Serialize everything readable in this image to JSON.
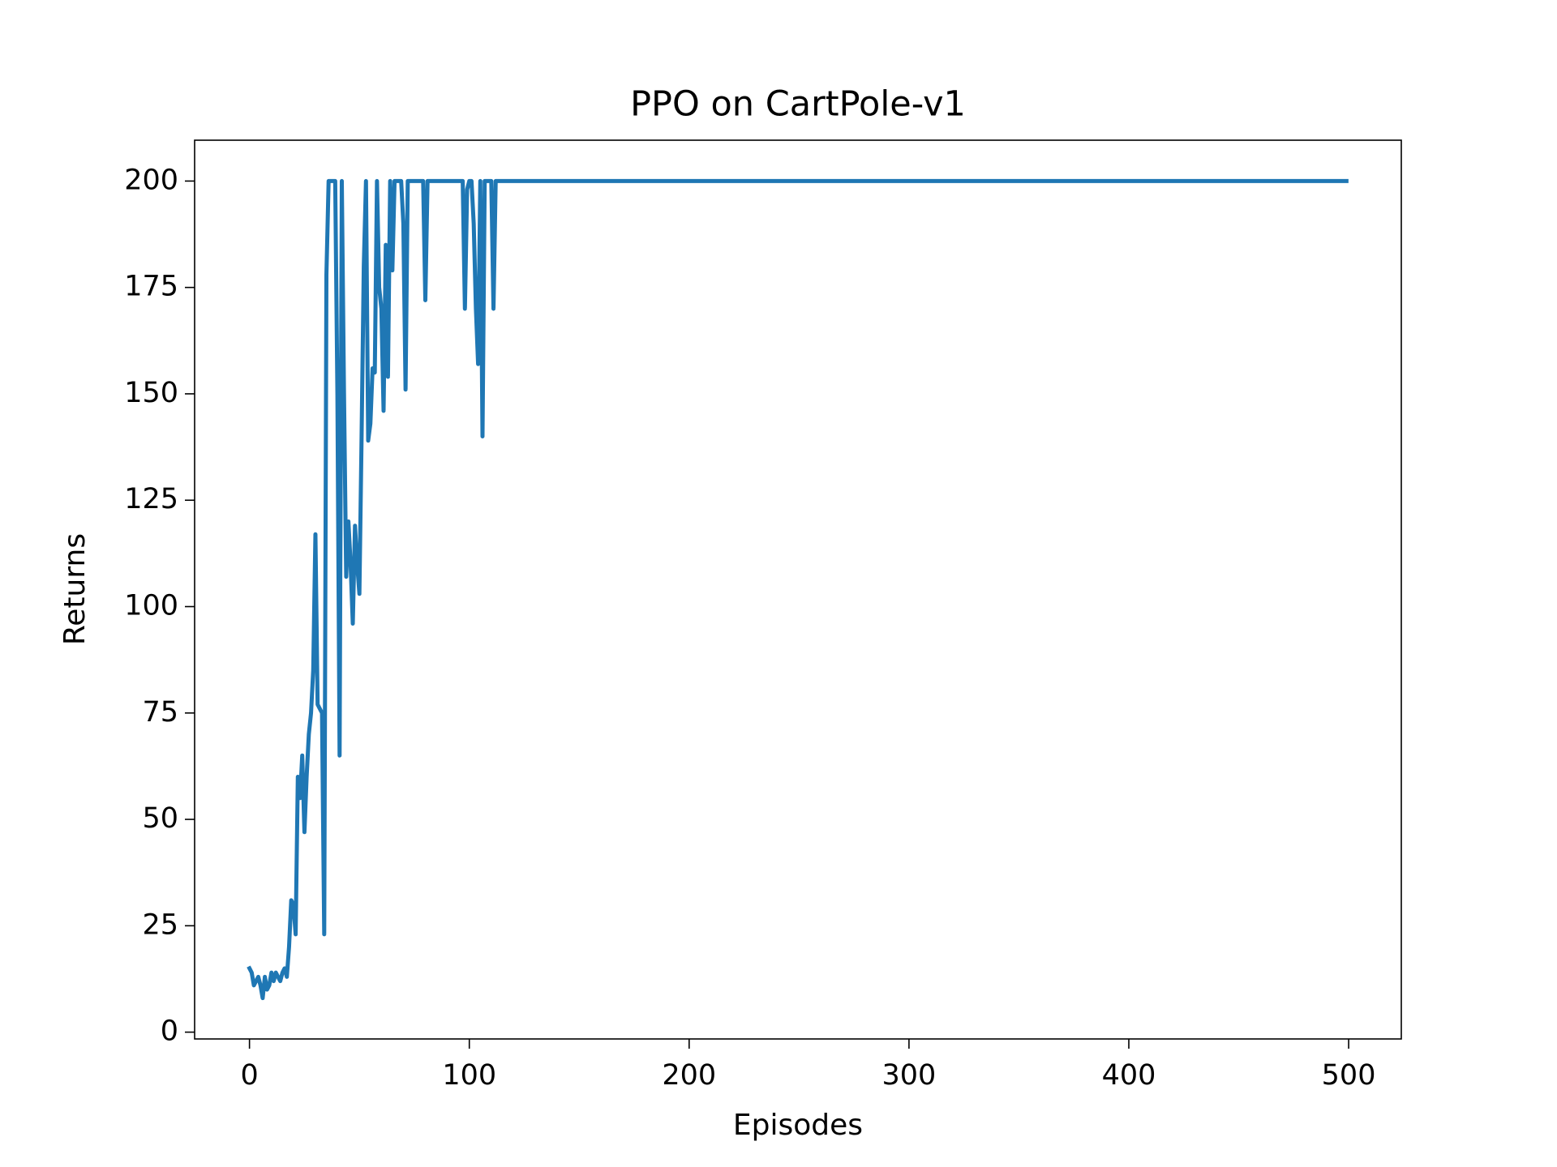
{
  "chart_data": {
    "type": "line",
    "title": "PPO on CartPole-v1",
    "x_label": "Episodes",
    "y_label": "Returns",
    "color": "#1f77b4",
    "xlim": [
      -24.95,
      523.95
    ],
    "xticks": [
      0,
      100,
      200,
      300,
      400,
      500
    ],
    "ylim": [
      -1.6,
      209.6
    ],
    "yticks": [
      0,
      25,
      50,
      75,
      100,
      125,
      150,
      175,
      200
    ],
    "x": [
      0,
      1,
      2,
      3,
      4,
      5,
      6,
      7,
      8,
      9,
      10,
      11,
      12,
      13,
      14,
      15,
      16,
      17,
      18,
      19,
      20,
      21,
      22,
      23,
      24,
      25,
      26,
      27,
      28,
      29,
      30,
      31,
      32,
      33,
      34,
      35,
      36,
      37,
      38,
      39,
      40,
      41,
      42,
      43,
      44,
      45,
      46,
      47,
      48,
      49,
      50,
      51,
      52,
      53,
      54,
      55,
      56,
      57,
      58,
      59,
      60,
      61,
      62,
      63,
      64,
      65,
      66,
      67,
      68,
      69,
      70,
      71,
      72,
      73,
      74,
      75,
      76,
      77,
      78,
      79,
      80,
      81,
      82,
      83,
      84,
      85,
      86,
      87,
      88,
      89,
      90,
      91,
      92,
      93,
      94,
      95,
      96,
      97,
      98,
      99,
      100,
      101,
      102,
      103,
      104,
      105,
      106,
      107,
      108,
      109,
      110,
      111,
      112,
      113,
      114,
      115,
      116,
      117,
      118,
      119,
      120,
      121,
      122,
      123,
      124,
      125,
      126,
      127,
      128,
      129,
      130,
      131,
      132,
      133,
      134,
      135,
      136,
      137,
      138,
      139,
      140,
      141,
      142,
      143,
      144,
      145,
      146,
      147,
      148,
      149,
      150,
      151,
      152,
      153,
      154,
      155,
      156,
      157,
      158,
      159,
      160,
      161,
      162,
      163,
      164,
      165,
      166,
      167,
      168,
      169,
      170,
      171,
      172,
      173,
      174,
      175,
      176,
      177,
      178,
      179,
      180,
      181,
      182,
      183,
      184,
      185,
      186,
      187,
      188,
      189,
      190,
      191,
      192,
      193,
      194,
      195,
      196,
      197,
      198,
      199,
      200,
      201,
      202,
      203,
      204,
      205,
      206,
      207,
      208,
      209,
      210,
      211,
      212,
      213,
      214,
      215,
      216,
      217,
      218,
      219,
      220,
      221,
      222,
      223,
      224,
      225,
      226,
      227,
      228,
      229,
      230,
      231,
      232,
      233,
      234,
      235,
      236,
      237,
      238,
      239,
      240,
      241,
      242,
      243,
      244,
      245,
      246,
      247,
      248,
      249,
      250,
      251,
      252,
      253,
      254,
      255,
      256,
      257,
      258,
      259,
      260,
      261,
      262,
      263,
      264,
      265,
      266,
      267,
      268,
      269,
      270,
      271,
      272,
      273,
      274,
      275,
      276,
      277,
      278,
      279,
      280,
      281,
      282,
      283,
      284,
      285,
      286,
      287,
      288,
      289,
      290,
      291,
      292,
      293,
      294,
      295,
      296,
      297,
      298,
      299,
      300,
      301,
      302,
      303,
      304,
      305,
      306,
      307,
      308,
      309,
      310,
      311,
      312,
      313,
      314,
      315,
      316,
      317,
      318,
      319,
      320,
      321,
      322,
      323,
      324,
      325,
      326,
      327,
      328,
      329,
      330,
      331,
      332,
      333,
      334,
      335,
      336,
      337,
      338,
      339,
      340,
      341,
      342,
      343,
      344,
      345,
      346,
      347,
      348,
      349,
      350,
      351,
      352,
      353,
      354,
      355,
      356,
      357,
      358,
      359,
      360,
      361,
      362,
      363,
      364,
      365,
      366,
      367,
      368,
      369,
      370,
      371,
      372,
      373,
      374,
      375,
      376,
      377,
      378,
      379,
      380,
      381,
      382,
      383,
      384,
      385,
      386,
      387,
      388,
      389,
      390,
      391,
      392,
      393,
      394,
      395,
      396,
      397,
      398,
      399,
      400,
      401,
      402,
      403,
      404,
      405,
      406,
      407,
      408,
      409,
      410,
      411,
      412,
      413,
      414,
      415,
      416,
      417,
      418,
      419,
      420,
      421,
      422,
      423,
      424,
      425,
      426,
      427,
      428,
      429,
      430,
      431,
      432,
      433,
      434,
      435,
      436,
      437,
      438,
      439,
      440,
      441,
      442,
      443,
      444,
      445,
      446,
      447,
      448,
      449,
      450,
      451,
      452,
      453,
      454,
      455,
      456,
      457,
      458,
      459,
      460,
      461,
      462,
      463,
      464,
      465,
      466,
      467,
      468,
      469,
      470,
      471,
      472,
      473,
      474,
      475,
      476,
      477,
      478,
      479,
      480,
      481,
      482,
      483,
      484,
      485,
      486,
      487,
      488,
      489,
      490,
      491,
      492,
      493,
      494,
      495,
      496,
      497,
      498,
      499
    ],
    "values": [
      15,
      14,
      11,
      12,
      13,
      11,
      8,
      13,
      10,
      11,
      14,
      12,
      14,
      13,
      12,
      14,
      15,
      13,
      20,
      31,
      30,
      23,
      60,
      55,
      65,
      47,
      60,
      70,
      75,
      85,
      117,
      77,
      76,
      75,
      23,
      178,
      200,
      200,
      200,
      200,
      150,
      65,
      200,
      150,
      107,
      120,
      110,
      96,
      119,
      110,
      103,
      140,
      180,
      200,
      139,
      143,
      156,
      155,
      200,
      175,
      170,
      146,
      185,
      154,
      200,
      179,
      200,
      200,
      200,
      200,
      190,
      151,
      200,
      200,
      200,
      200,
      200,
      200,
      200,
      200,
      172,
      200,
      200,
      200,
      200,
      200,
      200,
      200,
      200,
      200,
      200,
      200,
      200,
      200,
      200,
      200,
      200,
      200,
      170,
      198,
      200,
      200,
      190,
      170,
      157,
      200,
      140,
      200,
      200,
      200,
      200,
      170,
      200,
      200,
      200,
      200,
      200,
      200,
      200,
      200,
      200,
      200,
      200,
      200,
      200,
      200,
      200,
      200,
      200,
      200,
      200,
      200,
      200,
      200,
      200,
      200,
      200,
      200,
      200,
      200,
      200,
      200,
      200,
      200,
      200,
      200,
      200,
      200,
      200,
      200,
      200,
      200,
      200,
      200,
      200,
      200,
      200,
      200,
      200,
      200,
      200,
      200,
      200,
      200,
      200,
      200,
      200,
      200,
      200,
      200,
      200,
      200,
      200,
      200,
      200,
      200,
      200,
      200,
      200,
      200,
      200,
      200,
      200,
      200,
      200,
      200,
      200,
      200,
      200,
      200,
      200,
      200,
      200,
      200,
      200,
      200,
      200,
      200,
      200,
      200,
      200,
      200,
      200,
      200,
      200,
      200,
      200,
      200,
      200,
      200,
      200,
      200,
      200,
      200,
      200,
      200,
      200,
      200,
      200,
      200,
      200,
      200,
      200,
      200,
      200,
      200,
      200,
      200,
      200,
      200,
      200,
      200,
      200,
      200,
      200,
      200,
      200,
      200,
      200,
      200,
      200,
      200,
      200,
      200,
      200,
      200,
      200,
      200,
      200,
      200,
      200,
      200,
      200,
      200,
      200,
      200,
      200,
      200,
      200,
      200,
      200,
      200,
      200,
      200,
      200,
      200,
      200,
      200,
      200,
      200,
      200,
      200,
      200,
      200,
      200,
      200,
      200,
      200,
      200,
      200,
      200,
      200,
      200,
      200,
      200,
      200,
      200,
      200,
      200,
      200,
      200,
      200,
      200,
      200,
      200,
      200,
      200,
      200,
      200,
      200,
      200,
      200,
      200,
      200,
      200,
      200,
      200,
      200,
      200,
      200,
      200,
      200,
      200,
      200,
      200,
      200,
      200,
      200,
      200,
      200,
      200,
      200,
      200,
      200,
      200,
      200,
      200,
      200,
      200,
      200,
      200,
      200,
      200,
      200,
      200,
      200,
      200,
      200,
      200,
      200,
      200,
      200,
      200,
      200,
      200,
      200,
      200,
      200,
      200,
      200,
      200,
      200,
      200,
      200,
      200,
      200,
      200,
      200,
      200,
      200,
      200,
      200,
      200,
      200,
      200,
      200,
      200,
      200,
      200,
      200,
      200,
      200,
      200,
      200,
      200,
      200,
      200,
      200,
      200,
      200,
      200,
      200,
      200,
      200,
      200,
      200,
      200,
      200,
      200,
      200,
      200,
      200,
      200,
      200,
      200,
      200,
      200,
      200,
      200,
      200,
      200,
      200,
      200,
      200,
      200,
      200,
      200,
      200,
      200,
      200,
      200,
      200,
      200,
      200,
      200,
      200,
      200,
      200,
      200,
      200,
      200,
      200,
      200,
      200,
      200,
      200,
      200,
      200,
      200,
      200,
      200,
      200,
      200,
      200,
      200,
      200,
      200,
      200,
      200,
      200,
      200,
      200,
      200,
      200,
      200,
      200,
      200,
      200,
      200,
      200,
      200,
      200,
      200,
      200,
      200,
      200,
      200,
      200,
      200,
      200,
      200,
      200,
      200,
      200,
      200,
      200,
      200,
      200,
      200,
      200,
      200,
      200,
      200,
      200,
      200,
      200,
      200,
      200,
      200,
      200,
      200,
      200,
      200,
      200,
      200,
      200,
      200,
      200,
      200,
      200,
      200,
      200,
      200,
      200,
      200,
      200,
      200,
      200,
      200,
      200
    ]
  }
}
